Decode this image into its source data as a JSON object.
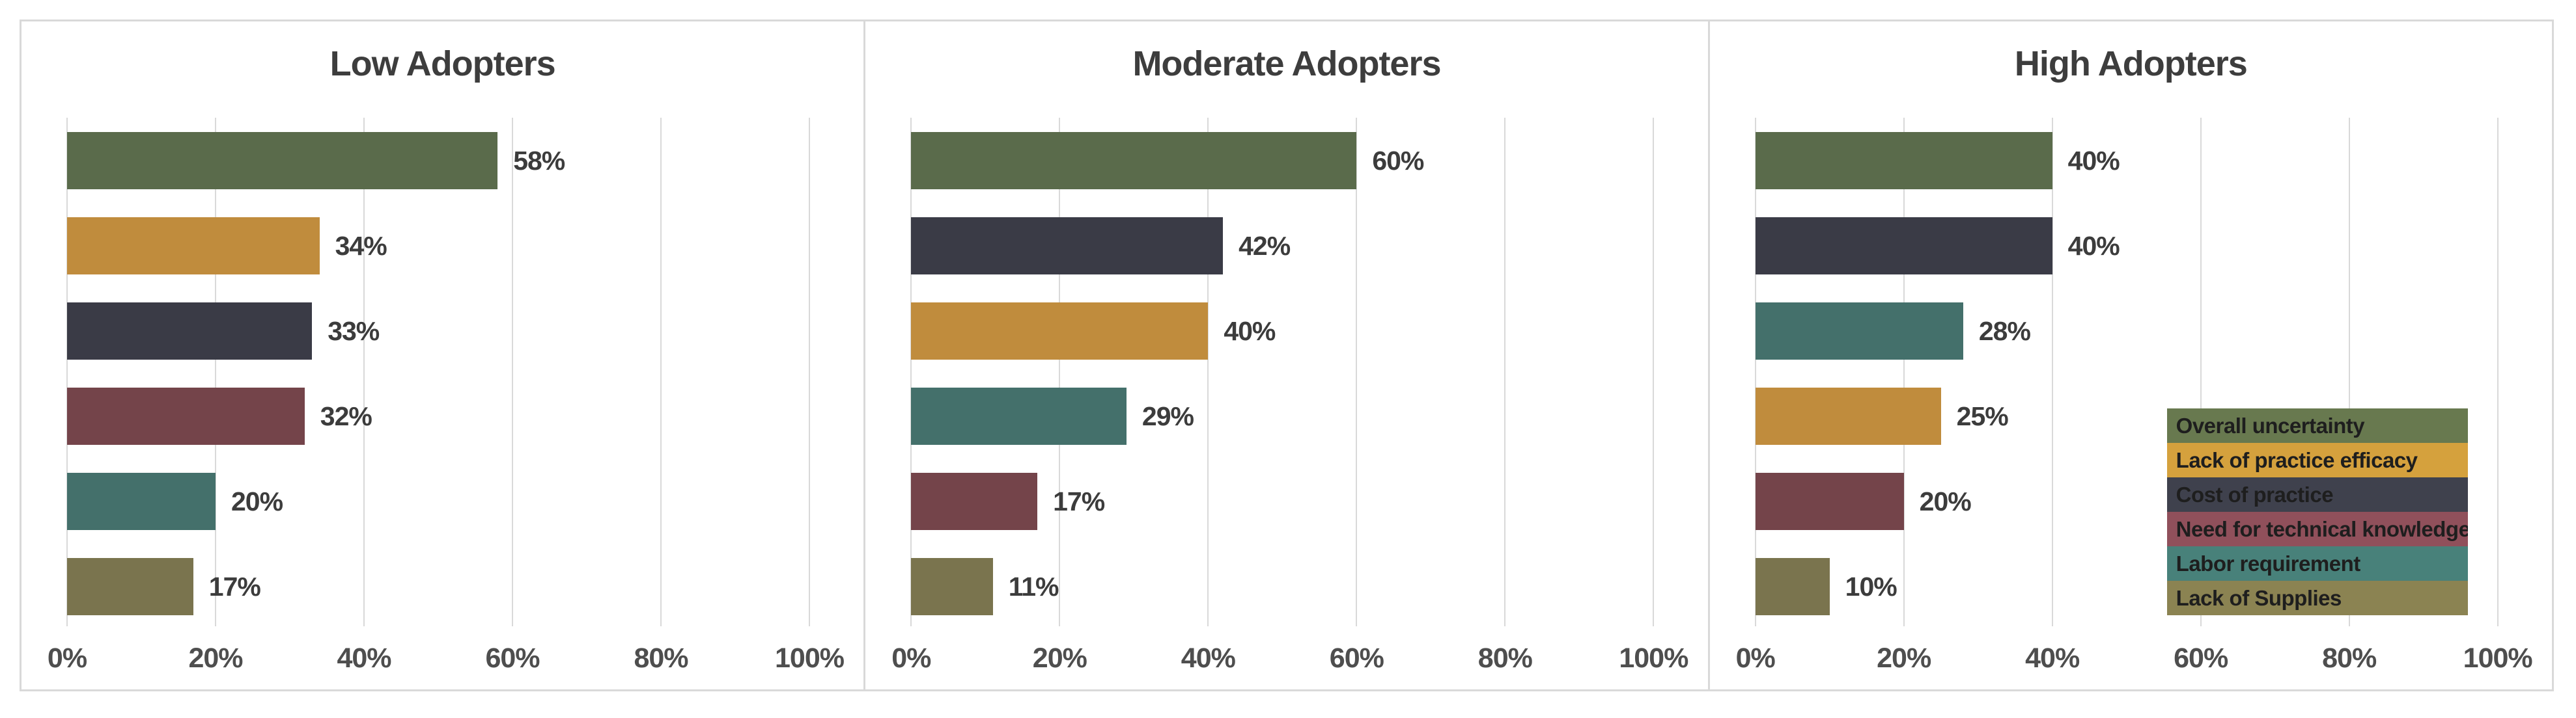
{
  "page_background": "#ffffff",
  "grid_color": "#d9d9d9",
  "category_colors": {
    "Overall uncertainty": "#5A6B4B",
    "Lack of practice efficacy": "#C08C3D",
    "Cost of practice": "#3A3B46",
    "Need for technical knowledge": "#74444A",
    "Labor requirement": "#44706B",
    "Lack of Supplies": "#7A744E"
  },
  "chart_data": [
    {
      "type": "bar",
      "orientation": "horizontal",
      "title": "Low Adopters",
      "categories": [
        "Overall uncertainty",
        "Lack of practice efficacy",
        "Cost of practice",
        "Need for technical knowledge",
        "Labor requirement",
        "Lack of Supplies"
      ],
      "values": [
        58,
        34,
        33,
        32,
        20,
        17
      ],
      "labels": [
        "58%",
        "34%",
        "33%",
        "32%",
        "20%",
        "17%"
      ],
      "xlim": [
        0,
        100
      ],
      "x_ticks": [
        "0%",
        "20%",
        "40%",
        "60%",
        "80%",
        "100%"
      ],
      "grid": true
    },
    {
      "type": "bar",
      "orientation": "horizontal",
      "title": "Moderate Adopters",
      "categories": [
        "Overall uncertainty",
        "Cost of practice",
        "Lack of practice efficacy",
        "Labor requirement",
        "Need for technical knowledge",
        "Lack of Supplies"
      ],
      "values": [
        60,
        42,
        40,
        29,
        17,
        11
      ],
      "labels": [
        "60%",
        "42%",
        "40%",
        "29%",
        "17%",
        "11%"
      ],
      "xlim": [
        0,
        100
      ],
      "x_ticks": [
        "0%",
        "20%",
        "40%",
        "60%",
        "80%",
        "100%"
      ],
      "grid": true
    },
    {
      "type": "bar",
      "orientation": "horizontal",
      "title": "High Adopters",
      "categories": [
        "Overall uncertainty",
        "Cost of practice",
        "Labor requirement",
        "Lack of practice efficacy",
        "Need for technical knowledge",
        "Lack of Supplies"
      ],
      "values": [
        40,
        40,
        28,
        25,
        20,
        10
      ],
      "labels": [
        "40%",
        "40%",
        "28%",
        "25%",
        "20%",
        "10%"
      ],
      "xlim": [
        0,
        100
      ],
      "x_ticks": [
        "0%",
        "20%",
        "40%",
        "60%",
        "80%",
        "100%"
      ],
      "grid": true
    }
  ],
  "legend": {
    "position": "overlay-right-of-third-panel",
    "items": [
      {
        "label": "Overall uncertainty",
        "color": "#68794F"
      },
      {
        "label": "Lack of practice efficacy",
        "color": "#D5A13D"
      },
      {
        "label": "Cost of practice",
        "color": "#3F414D"
      },
      {
        "label": "Need for technical knowledge",
        "color": "#90505B"
      },
      {
        "label": "Labor requirement",
        "color": "#48817A"
      },
      {
        "label": "Lack of Supplies",
        "color": "#8B8352"
      }
    ]
  }
}
